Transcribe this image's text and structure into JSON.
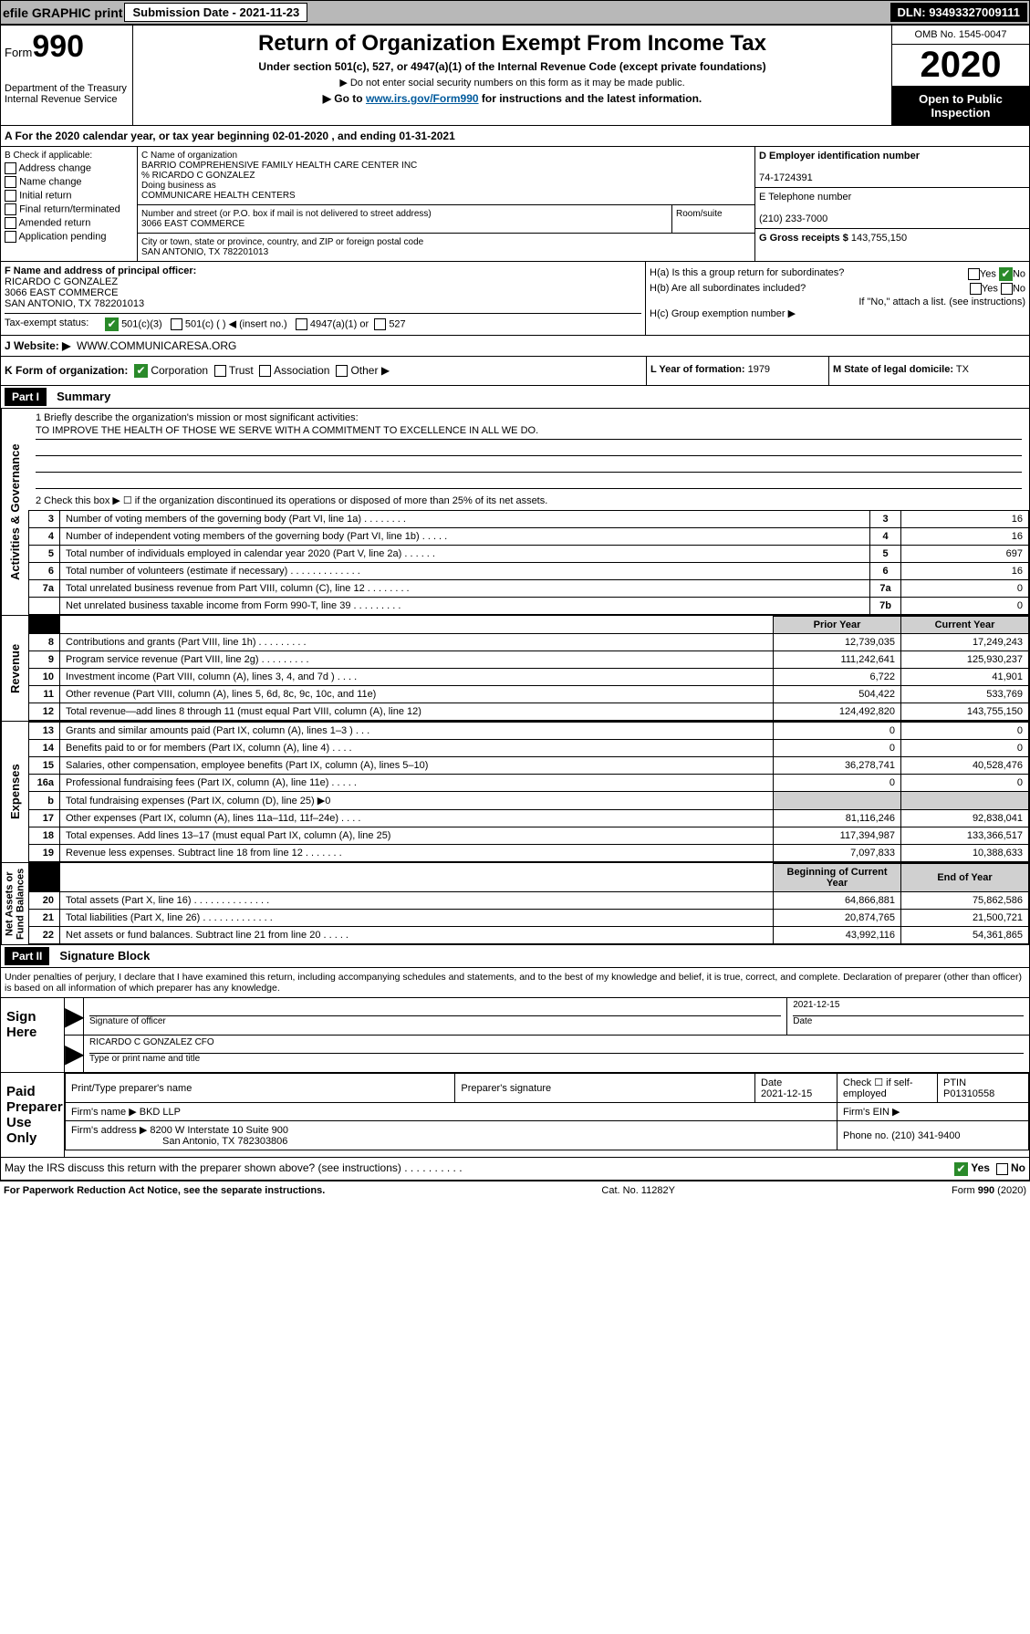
{
  "topbar": {
    "efile": "efile GRAPHIC print",
    "submission_label": "Submission Date - 2021-11-23",
    "dln": "DLN: 93493327009111"
  },
  "header": {
    "form_word": "Form",
    "form_num": "990",
    "dept": "Department of the Treasury\nInternal Revenue Service",
    "title": "Return of Organization Exempt From Income Tax",
    "subtitle": "Under section 501(c), 527, or 4947(a)(1) of the Internal Revenue Code (except private foundations)",
    "note1": "▶ Do not enter social security numbers on this form as it may be made public.",
    "note2_a": "▶ Go to ",
    "note2_link": "www.irs.gov/Form990",
    "note2_b": " for instructions and the latest information.",
    "omb": "OMB No. 1545-0047",
    "year": "2020",
    "public": "Open to Public\nInspection"
  },
  "rowA": "A For the 2020 calendar year, or tax year beginning 02-01-2020   , and ending 01-31-2021",
  "B": {
    "label": "B Check if applicable:",
    "items": [
      "Address change",
      "Name change",
      "Initial return",
      "Final return/terminated",
      "Amended return",
      "Application pending"
    ]
  },
  "C": {
    "name_label": "C Name of organization",
    "name": "BARRIO COMPREHENSIVE FAMILY HEALTH CARE CENTER INC",
    "care_of": "% RICARDO C GONZALEZ",
    "dba_label": "Doing business as",
    "dba": "COMMUNICARE HEALTH CENTERS",
    "addr_label": "Number and street (or P.O. box if mail is not delivered to street address)",
    "addr": "3066 EAST COMMERCE",
    "room_label": "Room/suite",
    "city_label": "City or town, state or province, country, and ZIP or foreign postal code",
    "city": "SAN ANTONIO, TX  782201013"
  },
  "D": {
    "label": "D Employer identification number",
    "value": "74-1724391"
  },
  "E": {
    "label": "E Telephone number",
    "value": "(210) 233-7000"
  },
  "G": {
    "label": "G Gross receipts $",
    "value": "143,755,150"
  },
  "F": {
    "label": "F  Name and address of principal officer:",
    "name": "RICARDO C GONZALEZ",
    "addr": "3066 EAST COMMERCE",
    "city": "SAN ANTONIO, TX  782201013"
  },
  "H": {
    "a": "H(a)  Is this a group return for subordinates?",
    "b": "H(b)  Are all subordinates included?",
    "b_note": "If \"No,\" attach a list. (see instructions)",
    "c": "H(c)  Group exemption number ▶",
    "yes": "Yes",
    "no": "No"
  },
  "I": {
    "label": "Tax-exempt status:",
    "opts": [
      "501(c)(3)",
      "501(c) (  ) ◀ (insert no.)",
      "4947(a)(1) or",
      "527"
    ]
  },
  "J": {
    "label": "J   Website: ▶",
    "value": "WWW.COMMUNICARESA.ORG"
  },
  "K": {
    "label": "K Form of organization:",
    "opts": [
      "Corporation",
      "Trust",
      "Association",
      "Other ▶"
    ]
  },
  "L": {
    "label": "L Year of formation:",
    "value": "1979"
  },
  "M": {
    "label": "M State of legal domicile:",
    "value": "TX"
  },
  "part1": {
    "hdr": "Part I",
    "title": "Summary",
    "q1": "1  Briefly describe the organization's mission or most significant activities:",
    "mission": "TO IMPROVE THE HEALTH OF THOSE WE SERVE WITH A COMMITMENT TO EXCELLENCE IN ALL WE DO.",
    "q2": "2  Check this box ▶ ☐  if the organization discontinued its operations or disposed of more than 25% of its net assets.",
    "vtabs": {
      "gov": "Activities & Governance",
      "rev": "Revenue",
      "exp": "Expenses",
      "net": "Net Assets or\nFund Balances"
    },
    "cols": {
      "prior": "Prior Year",
      "current": "Current Year",
      "boy": "Beginning of Current Year",
      "eoy": "End of Year"
    },
    "lines_gov": [
      {
        "n": "3",
        "d": "Number of voting members of the governing body (Part VI, line 1a)  .  .  .  .  .  .  .  .",
        "box": "3",
        "v": "16"
      },
      {
        "n": "4",
        "d": "Number of independent voting members of the governing body (Part VI, line 1b)  .  .  .  .  .",
        "box": "4",
        "v": "16"
      },
      {
        "n": "5",
        "d": "Total number of individuals employed in calendar year 2020 (Part V, line 2a)  .  .  .  .  .  .",
        "box": "5",
        "v": "697"
      },
      {
        "n": "6",
        "d": "Total number of volunteers (estimate if necessary)  .  .  .  .  .  .  .  .  .  .  .  .  .",
        "box": "6",
        "v": "16"
      },
      {
        "n": "7a",
        "d": "Total unrelated business revenue from Part VIII, column (C), line 12  .  .  .  .  .  .  .  .",
        "box": "7a",
        "v": "0"
      },
      {
        "n": "",
        "d": "Net unrelated business taxable income from Form 990-T, line 39  .  .  .  .  .  .  .  .  .",
        "box": "7b",
        "v": "0"
      }
    ],
    "lines_rev": [
      {
        "n": "8",
        "d": "Contributions and grants (Part VIII, line 1h)  .  .  .  .  .  .  .  .  .",
        "p": "12,739,035",
        "c": "17,249,243"
      },
      {
        "n": "9",
        "d": "Program service revenue (Part VIII, line 2g)  .  .  .  .  .  .  .  .  .",
        "p": "111,242,641",
        "c": "125,930,237"
      },
      {
        "n": "10",
        "d": "Investment income (Part VIII, column (A), lines 3, 4, and 7d )  .  .  .  .",
        "p": "6,722",
        "c": "41,901"
      },
      {
        "n": "11",
        "d": "Other revenue (Part VIII, column (A), lines 5, 6d, 8c, 9c, 10c, and 11e)",
        "p": "504,422",
        "c": "533,769"
      },
      {
        "n": "12",
        "d": "Total revenue—add lines 8 through 11 (must equal Part VIII, column (A), line 12)",
        "p": "124,492,820",
        "c": "143,755,150"
      }
    ],
    "lines_exp": [
      {
        "n": "13",
        "d": "Grants and similar amounts paid (Part IX, column (A), lines 1–3 )  .  .  .",
        "p": "0",
        "c": "0"
      },
      {
        "n": "14",
        "d": "Benefits paid to or for members (Part IX, column (A), line 4)  .  .  .  .",
        "p": "0",
        "c": "0"
      },
      {
        "n": "15",
        "d": "Salaries, other compensation, employee benefits (Part IX, column (A), lines 5–10)",
        "p": "36,278,741",
        "c": "40,528,476"
      },
      {
        "n": "16a",
        "d": "Professional fundraising fees (Part IX, column (A), line 11e)  .  .  .  .  .",
        "p": "0",
        "c": "0"
      },
      {
        "n": "b",
        "d": "Total fundraising expenses (Part IX, column (D), line 25) ▶0",
        "p": "",
        "c": "",
        "blank": true
      },
      {
        "n": "17",
        "d": "Other expenses (Part IX, column (A), lines 11a–11d, 11f–24e)  .  .  .  .",
        "p": "81,116,246",
        "c": "92,838,041"
      },
      {
        "n": "18",
        "d": "Total expenses. Add lines 13–17 (must equal Part IX, column (A), line 25)",
        "p": "117,394,987",
        "c": "133,366,517"
      },
      {
        "n": "19",
        "d": "Revenue less expenses. Subtract line 18 from line 12  .  .  .  .  .  .  .",
        "p": "7,097,833",
        "c": "10,388,633"
      }
    ],
    "lines_net": [
      {
        "n": "20",
        "d": "Total assets (Part X, line 16)  .  .  .  .  .  .  .  .  .  .  .  .  .  .",
        "p": "64,866,881",
        "c": "75,862,586"
      },
      {
        "n": "21",
        "d": "Total liabilities (Part X, line 26)  .  .  .  .  .  .  .  .  .  .  .  .  .",
        "p": "20,874,765",
        "c": "21,500,721"
      },
      {
        "n": "22",
        "d": "Net assets or fund balances. Subtract line 21 from line 20  .  .  .  .  .",
        "p": "43,992,116",
        "c": "54,361,865"
      }
    ]
  },
  "part2": {
    "hdr": "Part II",
    "title": "Signature Block"
  },
  "underpen": "Under penalties of perjury, I declare that I have examined this return, including accompanying schedules and statements, and to the best of my knowledge and belief, it is true, correct, and complete. Declaration of preparer (other than officer) is based on all information of which preparer has any knowledge.",
  "sign": {
    "label": "Sign Here",
    "sig_of_officer": "Signature of officer",
    "date_label": "Date",
    "date": "2021-12-15",
    "name": "RICARDO C GONZALEZ  CFO",
    "name_label": "Type or print name and title"
  },
  "paid": {
    "label": "Paid Preparer Use Only",
    "h": [
      "Print/Type preparer's name",
      "Preparer's signature",
      "Date",
      "",
      "PTIN"
    ],
    "date": "2021-12-15",
    "self_emp": "Check ☐ if self-employed",
    "ptin": "P01310558",
    "firm_name_l": "Firm's name    ▶",
    "firm_name": "BKD LLP",
    "firm_ein_l": "Firm's EIN ▶",
    "firm_addr_l": "Firm's address ▶",
    "firm_addr": "8200 W Interstate 10 Suite 900",
    "firm_city": "San Antonio, TX  782303806",
    "phone_l": "Phone no.",
    "phone": "(210) 341-9400"
  },
  "discuss": {
    "q": "May the IRS discuss this return with the preparer shown above? (see instructions)  .  .  .  .  .  .  .  .  .  .",
    "yes": "Yes",
    "no": "No"
  },
  "footer": {
    "left": "For Paperwork Reduction Act Notice, see the separate instructions.",
    "mid": "Cat. No. 11282Y",
    "right": "Form 990 (2020)"
  },
  "colors": {
    "accent": "#005a9c",
    "header_gray": "#b8b8b8",
    "cell_gray": "#d0d0d0"
  }
}
